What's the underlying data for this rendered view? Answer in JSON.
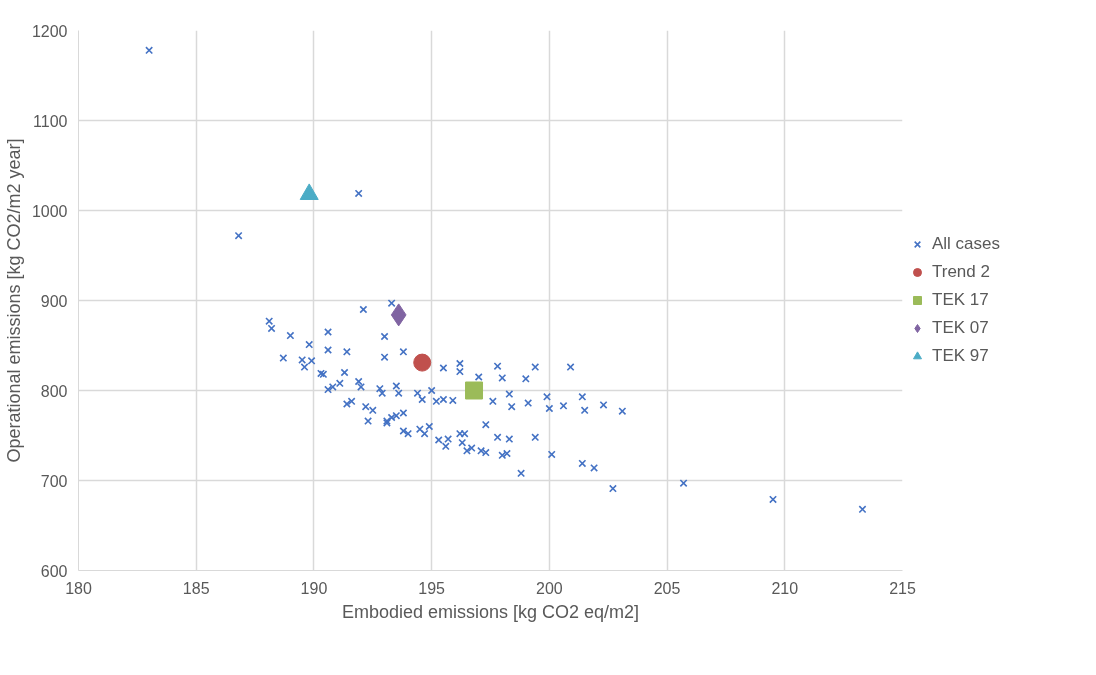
{
  "chart_data": {
    "type": "scatter",
    "xlabel": "Embodied emissions [kg CO2 eq/m2]",
    "ylabel": "Operational emissions [kg CO2/m2 year]",
    "xlim": [
      180,
      215
    ],
    "xticks": [
      180,
      185,
      190,
      195,
      200,
      205,
      210,
      215
    ],
    "ylim": [
      600,
      1200
    ],
    "yticks": [
      600,
      700,
      800,
      900,
      1000,
      1100,
      1200
    ],
    "grid": true,
    "legend": "right",
    "series": [
      {
        "name": "All cases",
        "color": "#4472c4",
        "marker": "cross",
        "x": [
          183.0,
          186.8,
          191.9,
          188.1,
          188.2,
          188.7,
          189.0,
          189.5,
          189.6,
          189.8,
          189.9,
          190.3,
          190.4,
          190.6,
          190.6,
          190.6,
          190.8,
          191.1,
          191.3,
          191.4,
          191.4,
          191.6,
          191.9,
          192.0,
          192.1,
          192.2,
          192.3,
          192.5,
          192.8,
          192.9,
          193.0,
          193.0,
          193.1,
          193.1,
          193.3,
          193.3,
          193.5,
          193.5,
          193.6,
          193.8,
          193.8,
          193.8,
          194.0,
          194.4,
          194.5,
          194.6,
          194.7,
          194.9,
          195.0,
          195.2,
          195.3,
          195.5,
          195.5,
          195.6,
          195.7,
          195.9,
          196.2,
          196.2,
          196.2,
          196.3,
          196.4,
          196.5,
          196.7,
          197.0,
          197.1,
          197.3,
          197.3,
          197.6,
          197.8,
          197.8,
          198.0,
          198.0,
          198.2,
          198.3,
          198.3,
          198.4,
          198.8,
          199.0,
          199.1,
          199.4,
          199.4,
          199.9,
          200.0,
          200.1,
          200.6,
          200.9,
          201.4,
          201.4,
          201.5,
          201.9,
          202.3,
          202.7,
          203.1,
          205.7,
          209.5,
          213.3
        ],
        "values": [
          1178,
          972,
          1019,
          877,
          869,
          836,
          861,
          834,
          826,
          851,
          833,
          819,
          818,
          865,
          845,
          801,
          804,
          808,
          820,
          843,
          785,
          788,
          810,
          804,
          890,
          782,
          766,
          778,
          802,
          797,
          860,
          837,
          766,
          764,
          897,
          770,
          772,
          805,
          797,
          843,
          775,
          755,
          752,
          797,
          757,
          790,
          752,
          760,
          800,
          788,
          745,
          825,
          790,
          738,
          746,
          789,
          830,
          821,
          752,
          742,
          752,
          733,
          736,
          815,
          733,
          762,
          731,
          788,
          827,
          748,
          814,
          728,
          730,
          796,
          746,
          782,
          708,
          813,
          786,
          826,
          748,
          793,
          780,
          729,
          783,
          826,
          793,
          719,
          778,
          714,
          784,
          691,
          777,
          697,
          679,
          668
        ]
      },
      {
        "name": "Trend 2",
        "color": "#c0504d",
        "marker": "circle",
        "x": [
          194.6
        ],
        "values": [
          831
        ]
      },
      {
        "name": "TEK 17",
        "color": "#9bbb59",
        "marker": "square",
        "x": [
          196.8
        ],
        "values": [
          800
        ]
      },
      {
        "name": "TEK 07",
        "color": "#8064a2",
        "marker": "diamond",
        "x": [
          193.6
        ],
        "values": [
          884
        ]
      },
      {
        "name": "TEK 97",
        "color": "#4bacc6",
        "marker": "triangle",
        "x": [
          189.8
        ],
        "values": [
          1018
        ]
      }
    ]
  }
}
